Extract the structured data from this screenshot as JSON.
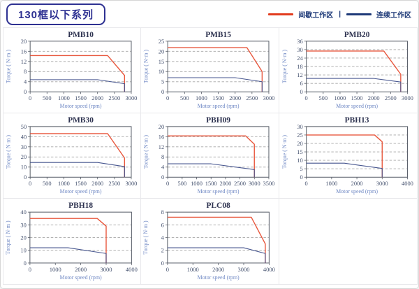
{
  "header": {
    "title": "130框以下系列",
    "legend_separator": "|",
    "legend": [
      {
        "key": "intermittent-zone",
        "label": "间歇工作区",
        "color": "#e23c1e"
      },
      {
        "key": "continuous-zone",
        "label": "连续工作区",
        "color": "#1e3a78"
      }
    ]
  },
  "colors": {
    "curve_red": "#e8573d",
    "curve_blue": "#47568f",
    "grid_line": "#a6a6a6",
    "plot_border": "#555b66",
    "tick_text": "#44516e",
    "axis_label_text": "#6f88c4",
    "title_text": "#2e3350"
  },
  "chart_data": [
    {
      "type": "line",
      "title": "PMB10",
      "xlabel": "Motor speed (rpm)",
      "ylabel": "Torque ( N·m )",
      "xlim": [
        0,
        3000
      ],
      "xstep": 500,
      "ylim": [
        0,
        20
      ],
      "ystep": 4,
      "grid": "dashed-horizontal",
      "legend_position": "none",
      "series": [
        {
          "name": "间歇工作区",
          "color_key": "curve_red",
          "points": [
            [
              0,
              14.3
            ],
            [
              2300,
              14.3
            ],
            [
              2800,
              6.5
            ],
            [
              2800,
              0
            ]
          ]
        },
        {
          "name": "连续工作区",
          "color_key": "curve_blue",
          "points": [
            [
              0,
              4.8
            ],
            [
              2000,
              4.8
            ],
            [
              2800,
              3.2
            ],
            [
              2800,
              0
            ]
          ]
        }
      ]
    },
    {
      "type": "line",
      "title": "PMB15",
      "xlabel": "Motor speed (rpm)",
      "ylabel": "Torque ( N·m )",
      "xlim": [
        0,
        3000
      ],
      "xstep": 500,
      "ylim": [
        0,
        25
      ],
      "ystep": 5,
      "grid": "dashed-horizontal",
      "legend_position": "none",
      "series": [
        {
          "name": "间歇工作区",
          "color_key": "curve_red",
          "points": [
            [
              0,
              21.8
            ],
            [
              2350,
              21.8
            ],
            [
              2800,
              10
            ],
            [
              2800,
              0
            ]
          ]
        },
        {
          "name": "连续工作区",
          "color_key": "curve_blue",
          "points": [
            [
              0,
              7
            ],
            [
              2000,
              7
            ],
            [
              2800,
              5
            ],
            [
              2800,
              0
            ]
          ]
        }
      ]
    },
    {
      "type": "line",
      "title": "PMB20",
      "xlabel": "Motor speed (rpm)",
      "ylabel": "Torque ( N·m )",
      "xlim": [
        0,
        3000
      ],
      "xstep": 500,
      "ylim": [
        0,
        36
      ],
      "ystep": 6,
      "grid": "dashed-horizontal",
      "legend_position": "none",
      "series": [
        {
          "name": "间歇工作区",
          "color_key": "curve_red",
          "points": [
            [
              0,
              29
            ],
            [
              2300,
              29
            ],
            [
              2800,
              12.5
            ],
            [
              2800,
              0
            ]
          ]
        },
        {
          "name": "连续工作区",
          "color_key": "curve_blue",
          "points": [
            [
              0,
              9.5
            ],
            [
              2000,
              9.5
            ],
            [
              2800,
              7
            ],
            [
              2800,
              0
            ]
          ]
        }
      ]
    },
    {
      "type": "line",
      "title": "PMB30",
      "xlabel": "Motor speed (rpm)",
      "ylabel": "Torque ( N·m )",
      "xlim": [
        0,
        3000
      ],
      "xstep": 500,
      "ylim": [
        0,
        50
      ],
      "ystep": 10,
      "grid": "dashed-horizontal",
      "legend_position": "none",
      "series": [
        {
          "name": "间歇工作区",
          "color_key": "curve_red",
          "points": [
            [
              0,
              43
            ],
            [
              2300,
              43
            ],
            [
              2800,
              19
            ],
            [
              2800,
              0
            ]
          ]
        },
        {
          "name": "连续工作区",
          "color_key": "curve_blue",
          "points": [
            [
              0,
              14.5
            ],
            [
              2000,
              14.5
            ],
            [
              2800,
              10.5
            ],
            [
              2800,
              0
            ]
          ]
        }
      ]
    },
    {
      "type": "line",
      "title": "PBH09",
      "xlabel": "Motor speed (rpm)",
      "ylabel": "Torque ( N·m )",
      "xlim": [
        0,
        3500
      ],
      "xstep": 500,
      "ylim": [
        0,
        20
      ],
      "ystep": 4,
      "grid": "dashed-horizontal",
      "legend_position": "none",
      "series": [
        {
          "name": "间歇工作区",
          "color_key": "curve_red",
          "points": [
            [
              0,
              16.3
            ],
            [
              2700,
              16.3
            ],
            [
              3000,
              13
            ],
            [
              3000,
              0
            ]
          ]
        },
        {
          "name": "连续工作区",
          "color_key": "curve_blue",
          "points": [
            [
              0,
              5.3
            ],
            [
              1500,
              5.3
            ],
            [
              3000,
              3
            ],
            [
              3000,
              0
            ]
          ]
        }
      ]
    },
    {
      "type": "line",
      "title": "PBH13",
      "xlabel": "Motor speed (rpm)",
      "ylabel": "Torque ( N·m )",
      "xlim": [
        0,
        4000
      ],
      "xstep": 1000,
      "ylim": [
        0,
        30
      ],
      "ystep": 5,
      "grid": "dashed-horizontal",
      "legend_position": "none",
      "series": [
        {
          "name": "间歇工作区",
          "color_key": "curve_red",
          "points": [
            [
              0,
              25
            ],
            [
              2700,
              25
            ],
            [
              3000,
              21
            ],
            [
              3000,
              0
            ]
          ]
        },
        {
          "name": "连续工作区",
          "color_key": "curve_blue",
          "points": [
            [
              0,
              8.3
            ],
            [
              1500,
              8.3
            ],
            [
              3000,
              5.2
            ],
            [
              3000,
              0
            ]
          ]
        }
      ]
    },
    {
      "type": "line",
      "title": "PBH18",
      "xlabel": "Motor speed (rpm)",
      "ylabel": "Torque ( N·m )",
      "xlim": [
        0,
        4000
      ],
      "xstep": 1000,
      "ylim": [
        0,
        40
      ],
      "ystep": 10,
      "grid": "dashed-horizontal",
      "legend_position": "none",
      "series": [
        {
          "name": "间歇工作区",
          "color_key": "curve_red",
          "points": [
            [
              0,
              35
            ],
            [
              2650,
              35
            ],
            [
              3000,
              29
            ],
            [
              3000,
              0
            ]
          ]
        },
        {
          "name": "连续工作区",
          "color_key": "curve_blue",
          "points": [
            [
              0,
              12
            ],
            [
              1500,
              12
            ],
            [
              3000,
              7.5
            ],
            [
              3000,
              0
            ]
          ]
        }
      ]
    },
    {
      "type": "line",
      "title": "PLC08",
      "xlabel": "Motor speed (rpm)",
      "ylabel": "Torque ( N·m )",
      "xlim": [
        0,
        4000
      ],
      "xstep": 1000,
      "ylim": [
        0,
        8
      ],
      "ystep": 2,
      "grid": "dashed-horizontal",
      "legend_position": "none",
      "series": [
        {
          "name": "间歇工作区",
          "color_key": "curve_red",
          "points": [
            [
              0,
              7.2
            ],
            [
              3300,
              7.2
            ],
            [
              3850,
              3
            ],
            [
              3850,
              0
            ]
          ]
        },
        {
          "name": "连续工作区",
          "color_key": "curve_blue",
          "points": [
            [
              0,
              2.4
            ],
            [
              3000,
              2.4
            ],
            [
              3850,
              1.5
            ],
            [
              3850,
              0
            ]
          ]
        }
      ]
    }
  ]
}
